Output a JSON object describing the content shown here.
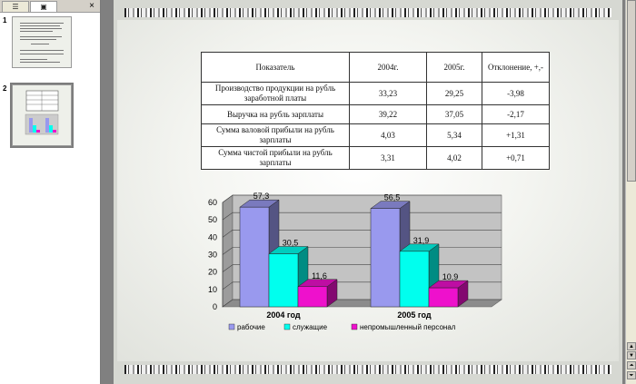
{
  "panel": {
    "tabs": [
      {
        "icon": "outline-icon"
      },
      {
        "icon": "slides-icon"
      }
    ],
    "close": "×",
    "slides": [
      {
        "number": "1"
      },
      {
        "number": "2"
      }
    ]
  },
  "table": {
    "header": [
      "Показатель",
      "2004г.",
      "2005г.",
      "Отклонение, +,-"
    ],
    "rows": [
      [
        "Производство продукции на рубль заработной платы",
        "33,23",
        "29,25",
        "-3,98"
      ],
      [
        "Выручка на рубль зарплаты",
        "39,22",
        "37,05",
        "-2,17"
      ],
      [
        "Сумма валовой прибыли на рубль зарплаты",
        "4,03",
        "5,34",
        "+1,31"
      ],
      [
        "Сумма чистой прибыли на рубль зарплаты",
        "3,31",
        "4,02",
        "+0,71"
      ]
    ]
  },
  "chart_data": {
    "type": "bar",
    "categories": [
      "2004 год",
      "2005 год"
    ],
    "series": [
      {
        "name": "рабочие",
        "values": [
          57.3,
          56.5
        ],
        "labels": [
          "57,3",
          "56,5"
        ],
        "color": "#9999ee"
      },
      {
        "name": "служащие",
        "values": [
          30.5,
          31.9
        ],
        "labels": [
          "30,5",
          "31,9"
        ],
        "color": "#00ffee"
      },
      {
        "name": "непромышленный персонал",
        "values": [
          11.6,
          10.9
        ],
        "labels": [
          "11,6",
          "10,9"
        ],
        "color": "#ee11cc"
      }
    ],
    "ylim": [
      0,
      60
    ],
    "yticks": [
      "0",
      "10",
      "20",
      "30",
      "40",
      "50",
      "60"
    ],
    "grid": true,
    "legend": "bottom"
  },
  "scrollbar": {
    "up": "▲",
    "down": "▼",
    "prev": "⏶",
    "next": "⏷"
  }
}
